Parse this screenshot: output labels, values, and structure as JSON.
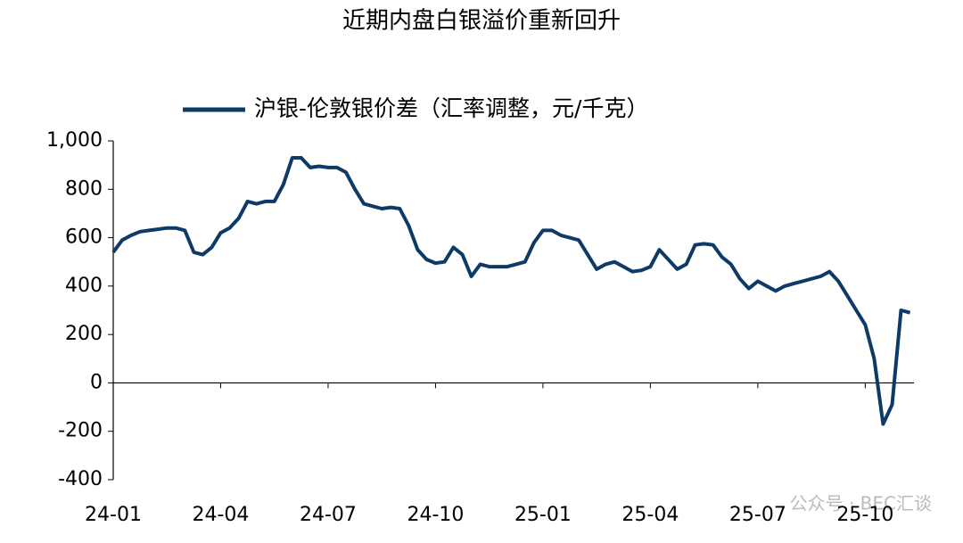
{
  "chart_data": {
    "type": "line",
    "title": "近期内盘白银溢价重新回升",
    "watermark": "公众号 · BEC汇谈",
    "categories": [
      "24-01",
      null,
      null,
      null,
      null,
      null,
      null,
      null,
      null,
      null,
      null,
      null,
      "24-04",
      null,
      null,
      null,
      null,
      null,
      null,
      null,
      null,
      null,
      null,
      null,
      "24-07",
      null,
      null,
      null,
      null,
      null,
      null,
      null,
      null,
      null,
      null,
      null,
      "24-10",
      null,
      null,
      null,
      null,
      null,
      null,
      null,
      null,
      null,
      null,
      null,
      "25-01",
      null,
      null,
      null,
      null,
      null,
      null,
      null,
      null,
      null,
      null,
      null,
      "25-04",
      null,
      null,
      null,
      null,
      null,
      null,
      null,
      null,
      null,
      null,
      null,
      "25-07",
      null,
      null,
      null,
      null,
      null,
      null,
      null,
      null,
      null,
      null,
      null,
      "25-10",
      null,
      null,
      null,
      null,
      null
    ],
    "series": [
      {
        "name": "沪银-伦敦银价差（汇率调整，元/千克）",
        "color": "#0d3a66",
        "values": [
          540,
          590,
          610,
          625,
          630,
          635,
          640,
          640,
          630,
          540,
          530,
          560,
          620,
          640,
          680,
          750,
          740,
          750,
          750,
          820,
          930,
          930,
          890,
          895,
          890,
          890,
          870,
          800,
          740,
          730,
          720,
          725,
          720,
          650,
          550,
          510,
          495,
          500,
          560,
          530,
          440,
          490,
          480,
          480,
          480,
          490,
          500,
          580,
          630,
          630,
          610,
          600,
          590,
          530,
          470,
          490,
          500,
          480,
          460,
          465,
          480,
          550,
          510,
          470,
          490,
          570,
          575,
          570,
          520,
          490,
          430,
          390,
          420,
          400,
          380,
          400,
          410,
          420,
          430,
          440,
          460,
          420,
          360,
          300,
          240,
          100,
          -170,
          -90,
          300,
          290
        ]
      }
    ],
    "ylim": [
      -400,
      1000
    ],
    "yticks": [
      -400,
      -200,
      0,
      200,
      400,
      600,
      800,
      {
        "value": 1000,
        "label": "1,000"
      }
    ]
  }
}
